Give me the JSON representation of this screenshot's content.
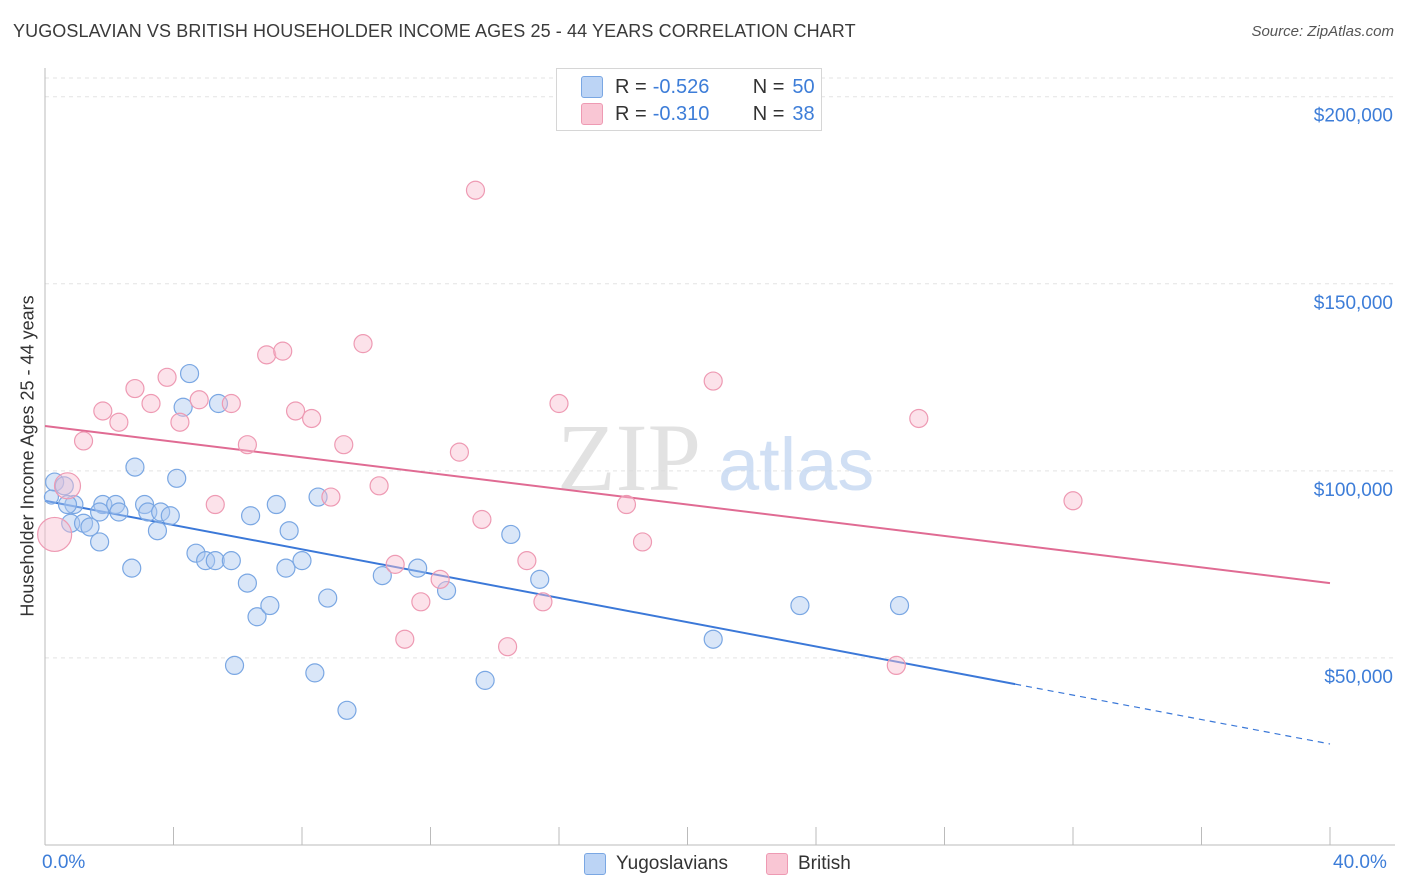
{
  "title": "YUGOSLAVIAN VS BRITISH HOUSEHOLDER INCOME AGES 25 - 44 YEARS CORRELATION CHART",
  "source": "Source: ZipAtlas.com",
  "watermark": {
    "zip": "ZIP",
    "atlas": "atlas"
  },
  "legend": {
    "r_label": "R =",
    "n_label": "N =",
    "rows": [
      {
        "r": "-0.526",
        "n": "50",
        "fill": "#bcd4f5",
        "stroke": "#7aa7e3"
      },
      {
        "r": "-0.310",
        "n": "38",
        "fill": "#f9c6d4",
        "stroke": "#ee9ab3"
      }
    ]
  },
  "bottom_legend": [
    {
      "name": "Yugoslavians",
      "fill": "#bcd4f5",
      "stroke": "#7aa7e3"
    },
    {
      "name": "British",
      "fill": "#f9c6d4",
      "stroke": "#ee9ab3"
    }
  ],
  "chart_data": {
    "type": "scatter",
    "title": "YUGOSLAVIAN VS BRITISH HOUSEHOLDER INCOME AGES 25 - 44 YEARS CORRELATION CHART",
    "xlabel": "",
    "ylabel": "Householder Income Ages 25 - 44 years",
    "xlim": [
      0,
      40
    ],
    "ylim": [
      0,
      205000
    ],
    "x_tick_labels": [
      "0.0%",
      "40.0%"
    ],
    "y_ticks": [
      50000,
      100000,
      150000,
      200000
    ],
    "y_tick_labels": [
      "$50,000",
      "$100,000",
      "$150,000",
      "$200,000"
    ],
    "grid": true,
    "colors": {
      "yugoslavian": "#3b78d8",
      "british": "#e06b93",
      "axis_text": "#3d7dd8"
    },
    "series": [
      {
        "name": "Yugoslavians",
        "trend": {
          "x": [
            0,
            30.2
          ],
          "y": [
            92000,
            43000
          ],
          "dashed_to": {
            "x": 40,
            "y": 27000
          }
        },
        "points": [
          [
            0.3,
            97000
          ],
          [
            0.6,
            96000
          ],
          [
            0.9,
            91000
          ],
          [
            0.8,
            86000
          ],
          [
            1.2,
            86000
          ],
          [
            0.7,
            91000
          ],
          [
            1.4,
            85000
          ],
          [
            1.8,
            91000
          ],
          [
            1.7,
            89000
          ],
          [
            2.2,
            91000
          ],
          [
            2.3,
            89000
          ],
          [
            1.7,
            81000
          ],
          [
            2.8,
            101000
          ],
          [
            3.1,
            91000
          ],
          [
            3.2,
            89000
          ],
          [
            3.6,
            89000
          ],
          [
            3.9,
            88000
          ],
          [
            4.1,
            98000
          ],
          [
            3.5,
            84000
          ],
          [
            2.7,
            74000
          ],
          [
            4.3,
            117000
          ],
          [
            4.5,
            126000
          ],
          [
            5.4,
            118000
          ],
          [
            4.7,
            78000
          ],
          [
            5.0,
            76000
          ],
          [
            5.3,
            76000
          ],
          [
            5.8,
            76000
          ],
          [
            6.3,
            70000
          ],
          [
            6.4,
            88000
          ],
          [
            6.6,
            61000
          ],
          [
            7.0,
            64000
          ],
          [
            7.2,
            91000
          ],
          [
            7.6,
            84000
          ],
          [
            7.5,
            74000
          ],
          [
            8.0,
            76000
          ],
          [
            8.5,
            93000
          ],
          [
            8.8,
            66000
          ],
          [
            8.4,
            46000
          ],
          [
            5.9,
            48000
          ],
          [
            9.4,
            36000
          ],
          [
            10.5,
            72000
          ],
          [
            11.6,
            74000
          ],
          [
            12.5,
            68000
          ],
          [
            13.7,
            44000
          ],
          [
            14.5,
            83000
          ],
          [
            15.4,
            71000
          ],
          [
            20.8,
            55000
          ],
          [
            23.5,
            64000
          ],
          [
            26.6,
            64000
          ],
          [
            0.2,
            93000
          ]
        ]
      },
      {
        "name": "British",
        "trend": {
          "x": [
            0,
            40
          ],
          "y": [
            112000,
            70000
          ]
        },
        "points": [
          [
            0.3,
            83000
          ],
          [
            0.7,
            96000
          ],
          [
            1.2,
            108000
          ],
          [
            1.8,
            116000
          ],
          [
            2.3,
            113000
          ],
          [
            2.8,
            122000
          ],
          [
            3.3,
            118000
          ],
          [
            3.8,
            125000
          ],
          [
            4.2,
            113000
          ],
          [
            4.8,
            119000
          ],
          [
            5.3,
            91000
          ],
          [
            5.8,
            118000
          ],
          [
            6.3,
            107000
          ],
          [
            6.9,
            131000
          ],
          [
            7.4,
            132000
          ],
          [
            7.8,
            116000
          ],
          [
            8.3,
            114000
          ],
          [
            8.9,
            93000
          ],
          [
            9.3,
            107000
          ],
          [
            9.9,
            134000
          ],
          [
            10.4,
            96000
          ],
          [
            10.9,
            75000
          ],
          [
            11.2,
            55000
          ],
          [
            11.7,
            65000
          ],
          [
            12.3,
            71000
          ],
          [
            12.9,
            105000
          ],
          [
            13.4,
            175000
          ],
          [
            13.6,
            87000
          ],
          [
            14.4,
            53000
          ],
          [
            15.0,
            76000
          ],
          [
            15.5,
            65000
          ],
          [
            16.0,
            118000
          ],
          [
            18.1,
            91000
          ],
          [
            18.6,
            81000
          ],
          [
            20.8,
            124000
          ],
          [
            27.2,
            114000
          ],
          [
            32.0,
            92000
          ],
          [
            26.5,
            48000
          ]
        ]
      }
    ]
  }
}
